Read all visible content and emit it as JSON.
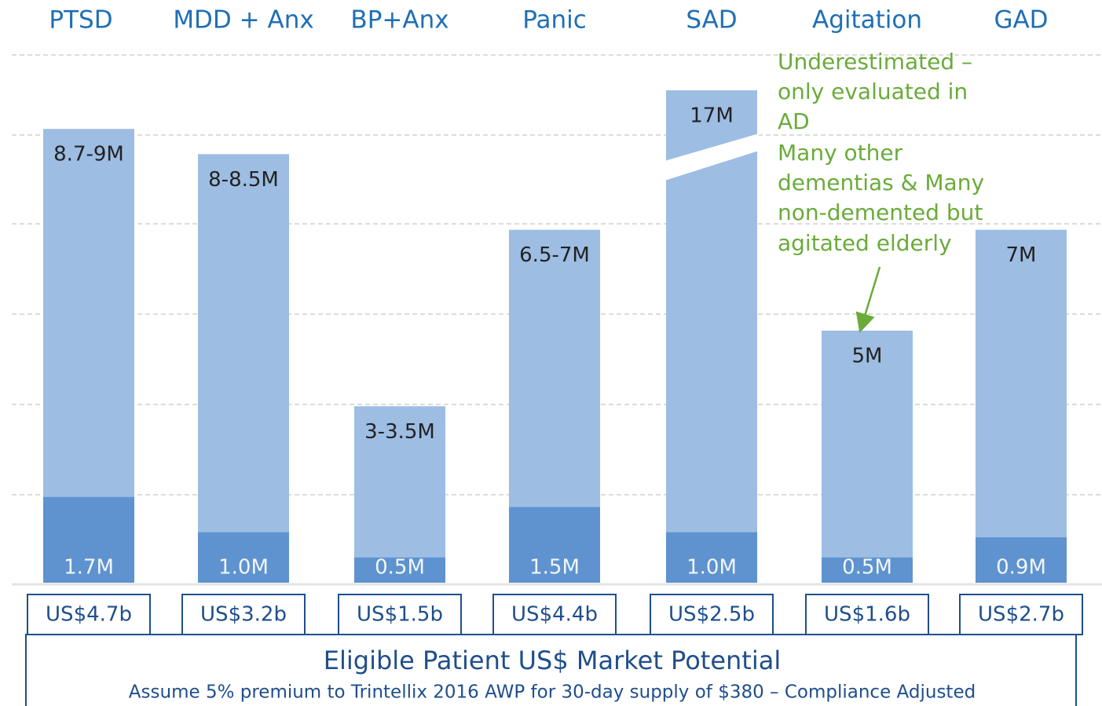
{
  "chart_data": {
    "type": "bar",
    "categories": [
      "PTSD",
      "MDD + Anx",
      "BP+Anx",
      "Panic",
      "SAD",
      "Agitation",
      "GAD"
    ],
    "series": [
      {
        "color": "#9dbde3",
        "values": [
          9,
          8.5,
          3.5,
          7,
          17,
          5,
          7
        ],
        "value_labels": [
          "8.7-9M",
          "8-8.5M",
          "3-3.5M",
          "6.5-7M",
          "17M",
          "5M",
          "7M"
        ]
      },
      {
        "color": "#5e93cf",
        "values": [
          1.7,
          1.0,
          0.5,
          1.5,
          1.0,
          0.5,
          0.9
        ],
        "value_labels": [
          "1.7M",
          "1.0M",
          "0.5M",
          "1.5M",
          "1.0M",
          "0.5M",
          "0.9M"
        ]
      }
    ],
    "ylim": [
      0,
      10
    ],
    "market_labels": [
      "US$4.7b",
      "US$3.2b",
      "US$1.5b",
      "US$4.4b",
      "US$2.5b",
      "US$1.6b",
      "US$2.7b"
    ],
    "annotation": [
      "Underestimated –",
      "only evaluated in",
      "AD",
      "Many other",
      "dementias & Many",
      "non-demented but",
      "agitated elderly"
    ],
    "footer_title": "Eligible Patient US$ Market Potential",
    "footer_subtitle": "Assume 5% premium to Trintellix 2016 AWP for 30-day supply of $380 – Compliance Adjusted"
  }
}
